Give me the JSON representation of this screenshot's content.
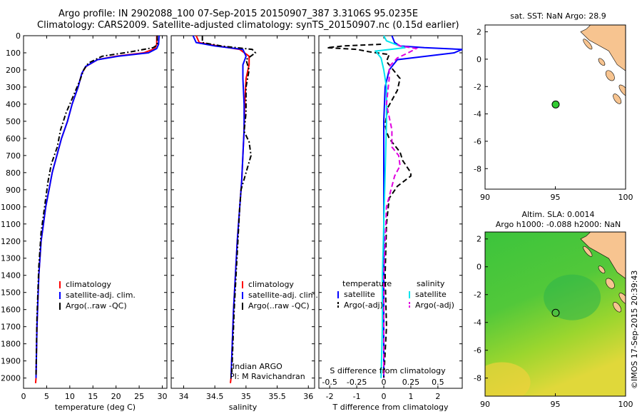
{
  "header": {
    "line1": "Argo profile: IN 2902088_100 07-Sep-2015 20150907_387 3.3106S 95.0235E",
    "line2": "Climatology: CARS2009. Satellite-adjusted climatology: synTS_20150907.nc (0.15d earlier)"
  },
  "colors": {
    "climatology": "#ff0000",
    "satellite": "#0000ff",
    "argo": "#000000",
    "salinity_satellite": "#00e5ee",
    "salinity_argo": "#e000e0",
    "land": "#f7c490",
    "float_marker": "#33cc33"
  },
  "credit": {
    "org": "Indian ARGO",
    "pi": "PI: M Ravichandran",
    "stamp": "©IMOS 17-Sep-2015 20:39:43"
  },
  "chart_data": [
    {
      "id": "temperature",
      "type": "line",
      "xlabel": "temperature (deg C)",
      "xlim": [
        0,
        31
      ],
      "ylim": [
        2060,
        0
      ],
      "xticks": [
        0,
        5,
        10,
        15,
        20,
        25,
        30
      ],
      "yticks": [
        0,
        100,
        200,
        300,
        400,
        500,
        600,
        700,
        800,
        900,
        1000,
        1100,
        1200,
        1300,
        1400,
        1500,
        1600,
        1700,
        1800,
        1900,
        2000
      ],
      "y_reversed": true,
      "legend": {
        "position": "bottom-center",
        "entries": [
          "climatology",
          "satellite-adj. clim.",
          "Argo(..raw -QC)"
        ]
      },
      "series": [
        {
          "name": "climatology",
          "color": "#ff0000",
          "style": "solid",
          "x": [
            28.8,
            28.8,
            28.4,
            26.0,
            20.0,
            16.0,
            13.5,
            12.6,
            11.8,
            10.5,
            9.5,
            8.2,
            7.2,
            6.2,
            5.5,
            4.8,
            4.3,
            3.8,
            3.3,
            2.9,
            2.7,
            2.6
          ],
          "y": [
            0,
            50,
            75,
            100,
            120,
            140,
            180,
            220,
            300,
            400,
            500,
            600,
            700,
            800,
            900,
            1000,
            1100,
            1200,
            1400,
            1700,
            2000,
            2030
          ]
        },
        {
          "name": "satellite-adj. clim.",
          "color": "#0000ff",
          "style": "solid",
          "x": [
            29.3,
            29.2,
            28.8,
            27.0,
            20.5,
            16.0,
            13.4,
            12.6,
            11.8,
            10.5,
            9.5,
            8.2,
            7.2,
            6.2,
            5.5,
            4.8,
            4.3,
            3.8,
            3.3,
            2.9,
            2.7
          ],
          "y": [
            0,
            50,
            75,
            100,
            120,
            140,
            180,
            220,
            300,
            400,
            500,
            600,
            700,
            800,
            900,
            1000,
            1100,
            1200,
            1400,
            1700,
            2000
          ]
        },
        {
          "name": "Argo(..raw -QC)",
          "color": "#000000",
          "style": "dashdot",
          "x": [
            28.9,
            28.9,
            28.0,
            23.0,
            17.0,
            14.0,
            13.0,
            12.2,
            10.8,
            9.2,
            8.0,
            7.3,
            6.0,
            5.3,
            4.8,
            4.3,
            3.8,
            3.3,
            2.9,
            2.7
          ],
          "y": [
            0,
            55,
            70,
            95,
            120,
            160,
            200,
            260,
            350,
            450,
            550,
            650,
            750,
            850,
            950,
            1050,
            1150,
            1350,
            1650,
            1980
          ]
        }
      ]
    },
    {
      "id": "salinity",
      "type": "line",
      "xlabel": "salinity",
      "xlim": [
        33.8,
        36.1
      ],
      "ylim": [
        2060,
        0
      ],
      "xticks": [
        34,
        34.5,
        35,
        35.5,
        36
      ],
      "y_reversed": true,
      "legend": {
        "position": "bottom-center",
        "entries": [
          "climatology",
          "satellite-adj. clim.",
          "Argo(..raw -QC)"
        ]
      },
      "series": [
        {
          "name": "climatology",
          "color": "#ff0000",
          "style": "solid",
          "x": [
            34.2,
            34.25,
            34.55,
            34.9,
            35.05,
            35.05,
            35.0,
            34.98,
            34.97,
            34.95,
            34.93,
            34.9,
            34.86,
            34.83,
            34.8,
            34.78,
            34.76,
            34.75
          ],
          "y": [
            0,
            40,
            60,
            80,
            120,
            170,
            250,
            400,
            550,
            700,
            850,
            1000,
            1200,
            1400,
            1600,
            1800,
            2000,
            2030
          ]
        },
        {
          "name": "satellite-adj. clim.",
          "color": "#0000ff",
          "style": "solid",
          "x": [
            34.15,
            34.2,
            34.5,
            34.95,
            35.0,
            34.95,
            34.95,
            34.97,
            34.97,
            34.95,
            34.93,
            34.9,
            34.86,
            34.83,
            34.8,
            34.78,
            34.76
          ],
          "y": [
            0,
            40,
            60,
            80,
            120,
            170,
            250,
            400,
            550,
            700,
            850,
            1000,
            1200,
            1400,
            1600,
            1800,
            2000
          ]
        },
        {
          "name": "Argo(..raw -QC)",
          "color": "#000000",
          "style": "dashdot",
          "x": [
            34.3,
            34.3,
            34.6,
            35.1,
            35.15,
            35.0,
            35.05,
            35.0,
            35.0,
            34.97,
            35.05,
            35.08,
            35.0,
            34.92,
            34.9,
            34.87,
            34.84,
            34.81,
            34.79,
            34.77
          ],
          "y": [
            0,
            40,
            60,
            80,
            100,
            140,
            200,
            300,
            450,
            560,
            620,
            700,
            800,
            900,
            1000,
            1200,
            1400,
            1600,
            1800,
            1980
          ]
        }
      ]
    },
    {
      "id": "difference",
      "type": "line",
      "xlabel": "T difference from climatology",
      "xlabel2": "S difference from climatology",
      "xlim": [
        -2.4,
        2.9
      ],
      "xticks": [
        -2,
        -1,
        0,
        1,
        2
      ],
      "xticks_s": [
        -0.5,
        -0.25,
        0,
        0.25,
        0.5
      ],
      "ylim": [
        2060,
        0
      ],
      "y_reversed": true,
      "legend": {
        "position": "bottom-center",
        "groups": [
          {
            "title": "temperature",
            "entries": [
              "satellite",
              "Argo(-adj)"
            ]
          },
          {
            "title": "salinity",
            "entries": [
              "satellite",
              "Argo(-adj)"
            ]
          }
        ]
      },
      "series": [
        {
          "name": "satellite",
          "group": "temperature",
          "color": "#0000ff",
          "style": "solid",
          "x": [
            0.3,
            0.4,
            0.6,
            1.5,
            2.9,
            2.6,
            0.5,
            0.2,
            0.05,
            0.0,
            0.0,
            0.0,
            0.0,
            0.0,
            0.0
          ],
          "y": [
            0,
            40,
            60,
            70,
            80,
            100,
            140,
            200,
            300,
            500,
            800,
            1100,
            1400,
            1700,
            2000
          ]
        },
        {
          "name": "Argo(-adj)",
          "group": "temperature",
          "color": "#000000",
          "style": "dashed",
          "x": [
            -0.1,
            -1.5,
            -2.1,
            -1.0,
            -0.5,
            0.2,
            0.1,
            0.6,
            0.5,
            0.15,
            0.05,
            0.1,
            0.2,
            0.6,
            0.7,
            1.0,
            1.0,
            0.5,
            0.2,
            0.1,
            0.05,
            0.1,
            0.0
          ],
          "y": [
            50,
            60,
            70,
            80,
            95,
            110,
            150,
            250,
            320,
            420,
            520,
            560,
            600,
            680,
            730,
            800,
            820,
            880,
            950,
            1100,
            1400,
            1700,
            2000
          ]
        },
        {
          "name": "satellite",
          "group": "salinity",
          "color": "#00e5ee",
          "style": "solid",
          "x": [
            0.0,
            0.1,
            0.5,
            0.8,
            -0.3,
            -0.1,
            0.0,
            0.1,
            0.1,
            0.05,
            0.0,
            -0.05,
            -0.05,
            -0.1
          ],
          "y": [
            0,
            30,
            55,
            70,
            90,
            130,
            200,
            300,
            500,
            800,
            1100,
            1400,
            1700,
            2000
          ]
        },
        {
          "name": "Argo(-adj)",
          "group": "salinity",
          "color": "#e000e0",
          "style": "dashed",
          "x": [
            0.5,
            0.6,
            1.2,
            0.9,
            0.5,
            0.2,
            0.2,
            0.1,
            0.3,
            0.3,
            0.55,
            0.6,
            0.4,
            0.3,
            0.1,
            0.0,
            0.0
          ],
          "y": [
            50,
            60,
            75,
            100,
            130,
            180,
            250,
            400,
            550,
            650,
            700,
            760,
            820,
            880,
            1000,
            1400,
            2000
          ]
        }
      ]
    },
    {
      "id": "map_sst",
      "type": "scatter",
      "title": "sat. SST: NaN Argo: 28.9",
      "xlim": [
        90,
        100
      ],
      "ylim": [
        -9.5,
        2.5
      ],
      "xticks": [
        90,
        95,
        100
      ],
      "yticks": [
        -8,
        -6,
        -4,
        -2,
        0,
        2
      ],
      "points": [
        {
          "x": 95.0235,
          "y": -3.3106
        }
      ]
    },
    {
      "id": "map_sla",
      "type": "heatmap",
      "title": "Altim. SLA: 0.0014",
      "subtitle": "Argo h1000: -0.088 h2000: NaN",
      "xlim": [
        90,
        100
      ],
      "ylim": [
        -9.3,
        2.5
      ],
      "xticks": [
        90,
        95,
        100
      ],
      "yticks": [
        -8,
        -6,
        -4,
        -2,
        0,
        2
      ],
      "points": [
        {
          "x": 95.0235,
          "y": -3.3106
        }
      ]
    }
  ]
}
